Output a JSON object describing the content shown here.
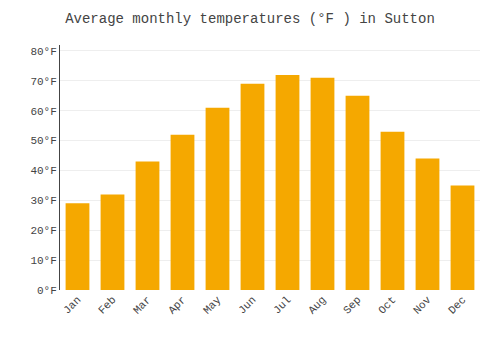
{
  "chart_data": {
    "type": "bar",
    "title": "Average monthly temperatures (°F ) in Sutton",
    "categories": [
      "Jan",
      "Feb",
      "Mar",
      "Apr",
      "May",
      "Jun",
      "Jul",
      "Aug",
      "Sep",
      "Oct",
      "Nov",
      "Dec"
    ],
    "values": [
      29,
      32,
      43,
      52,
      61,
      69,
      72,
      71,
      65,
      53,
      44,
      35
    ],
    "color": "#F5A800",
    "ylim": [
      0,
      82
    ],
    "yticks": [
      {
        "value": 0,
        "label": "0°F"
      },
      {
        "value": 10,
        "label": "10°F"
      },
      {
        "value": 20,
        "label": "20°F"
      },
      {
        "value": 30,
        "label": "30°F"
      },
      {
        "value": 40,
        "label": "40°F"
      },
      {
        "value": 50,
        "label": "50°F"
      },
      {
        "value": 60,
        "label": "60°F"
      },
      {
        "value": 70,
        "label": "70°F"
      },
      {
        "value": 80,
        "label": "80°F"
      }
    ],
    "grid": true
  }
}
